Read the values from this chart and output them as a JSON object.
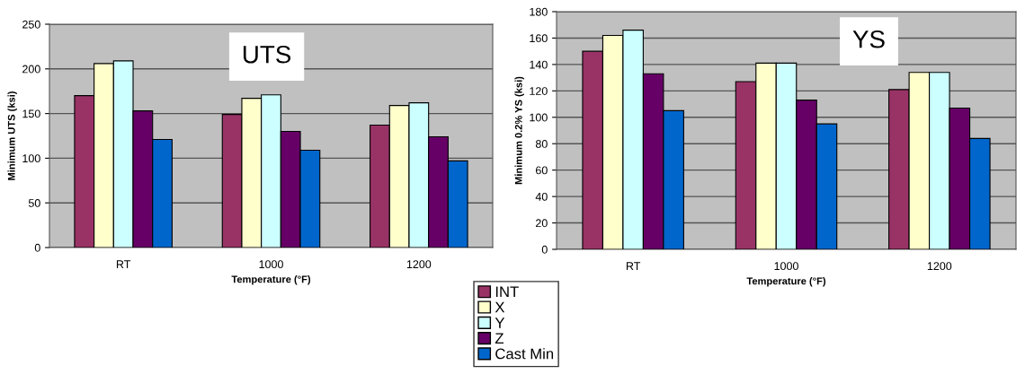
{
  "chart_data": [
    {
      "type": "bar",
      "title": "UTS",
      "xlabel": "Temperature (°F)",
      "ylabel": "Minimum UTS (ksi)",
      "categories": [
        "RT",
        "1000",
        "1200"
      ],
      "ylim": [
        0,
        250
      ],
      "yticks": [
        0,
        50,
        100,
        150,
        200,
        250
      ],
      "grid": "y",
      "legend": "bottom right",
      "series": [
        {
          "name": "INT",
          "color": "#993366",
          "values": [
            170,
            149,
            137
          ]
        },
        {
          "name": "X",
          "color": "#ffffcc",
          "values": [
            206,
            167,
            159
          ]
        },
        {
          "name": "Y",
          "color": "#ccffff",
          "values": [
            209,
            171,
            162
          ]
        },
        {
          "name": "Z",
          "color": "#660066",
          "values": [
            153,
            130,
            124
          ]
        },
        {
          "name": "Cast Min",
          "color": "#0066cc",
          "values": [
            121,
            109,
            97
          ]
        }
      ]
    },
    {
      "type": "bar",
      "title": "YS",
      "xlabel": "Temperature (°F)",
      "ylabel": "Minimum 0.2% YS (ksi)",
      "categories": [
        "RT",
        "1000",
        "1200"
      ],
      "ylim": [
        0,
        180
      ],
      "yticks": [
        0,
        20,
        40,
        60,
        80,
        100,
        120,
        140,
        160,
        180
      ],
      "grid": "y",
      "series": [
        {
          "color": "#993366",
          "values": [
            150,
            127,
            121
          ]
        },
        {
          "color": "#ffffcc",
          "values": [
            162,
            141,
            134
          ]
        },
        {
          "color": "#ccffff",
          "values": [
            166,
            141,
            134
          ]
        },
        {
          "color": "#660066",
          "values": [
            133,
            113,
            107
          ]
        },
        {
          "color": "#0066cc",
          "values": [
            105,
            95,
            84
          ]
        }
      ]
    }
  ]
}
